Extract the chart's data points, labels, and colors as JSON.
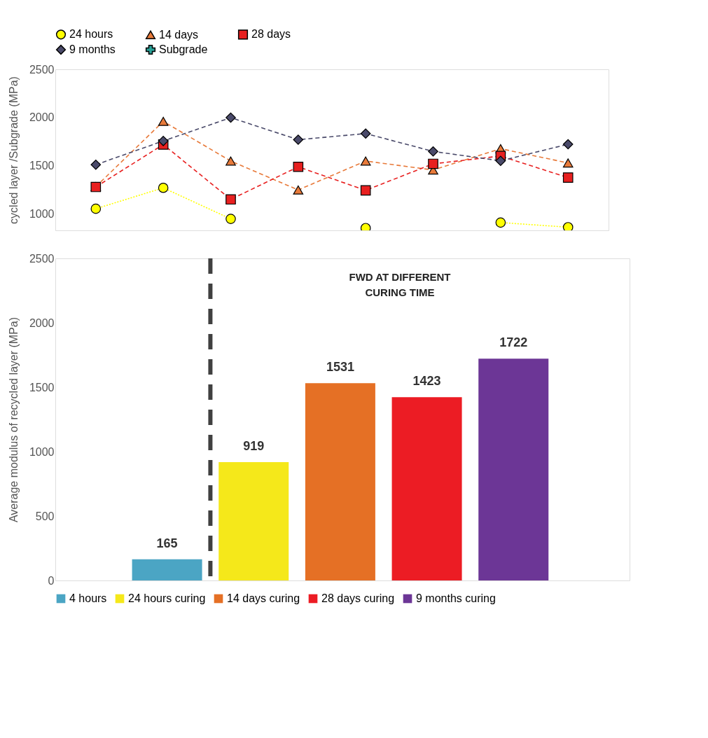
{
  "chart_data": [
    {
      "type": "line",
      "ylabel": "cycled layer /Subgrade (MPa)",
      "categories": [
        null,
        null,
        null,
        null,
        null,
        null,
        null,
        null
      ],
      "ylim": [
        830,
        2500
      ],
      "yticks": [
        1000,
        1500,
        2000,
        2500
      ],
      "grid": false,
      "legend": "top",
      "tick_labels": "y",
      "series": [
        {
          "name": "24 hours",
          "color": "#ffff00",
          "marker": "circle",
          "line_style": "dotted",
          "values": [
            1054,
            1271,
            949,
            null,
            854,
            null,
            911,
            863
          ]
        },
        {
          "name": "14 days",
          "color": "#e87a3a",
          "marker": "triangle",
          "line_style": "dashed",
          "values": [
            1283,
            1960,
            1549,
            1249,
            1549,
            1456,
            1677,
            1529
          ]
        },
        {
          "name": "28 days",
          "color": "#e82020",
          "marker": "square",
          "line_style": "dashed",
          "values": [
            1280,
            1720,
            1151,
            1489,
            1245,
            1520,
            1601,
            1377
          ]
        },
        {
          "name": "9 months",
          "color": "#4a4a6a",
          "marker": "diamond",
          "line_style": "dashed",
          "values": [
            1511,
            1757,
            1999,
            1770,
            1834,
            1649,
            1551,
            1723
          ]
        },
        {
          "name": "Subgrade",
          "color": "#2aa198",
          "marker": "cross",
          "line_style": "dashed",
          "values": [
            null,
            null,
            null,
            null,
            null,
            null,
            null,
            null
          ]
        }
      ]
    },
    {
      "type": "bar",
      "ylabel": "Average modulus of recycled  layer  (MPa)",
      "categories": [
        null
      ],
      "ylim": [
        0,
        2500
      ],
      "yticks": [
        0,
        500,
        1000,
        1500,
        2000,
        2500
      ],
      "grid": false,
      "legend": "bottom",
      "tick_labels": "y",
      "data_labels": true,
      "annotations": [
        "FWD AT DIFFERENT\nCURING TIME"
      ],
      "series": [
        {
          "name": "4 hours",
          "color": "#4ba5c4",
          "values": [
            165
          ]
        },
        {
          "name": "24 hours curing",
          "color": "#f5e81a",
          "values": [
            919
          ]
        },
        {
          "name": "14 days curing",
          "color": "#e57025",
          "values": [
            1531
          ]
        },
        {
          "name": "28 days curing",
          "color": "#ec1c24",
          "values": [
            1423
          ]
        },
        {
          "name": "9 months curing",
          "color": "#6c3696",
          "values": [
            1722
          ]
        }
      ]
    }
  ]
}
